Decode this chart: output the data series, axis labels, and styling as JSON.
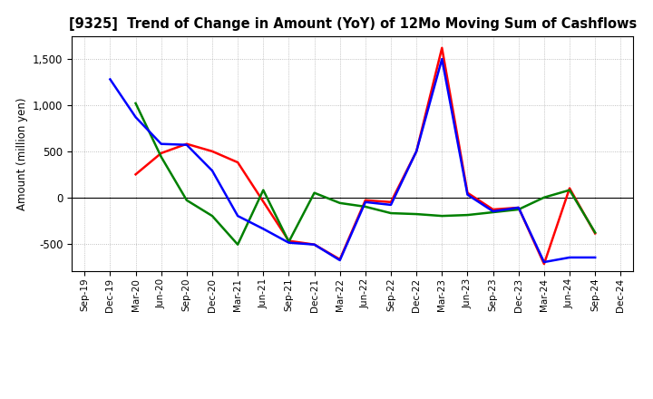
{
  "title": "[9325]  Trend of Change in Amount (YoY) of 12Mo Moving Sum of Cashflows",
  "ylabel": "Amount (million yen)",
  "x_labels": [
    "Sep-19",
    "Dec-19",
    "Mar-20",
    "Jun-20",
    "Sep-20",
    "Dec-20",
    "Mar-21",
    "Jun-21",
    "Sep-21",
    "Dec-21",
    "Mar-22",
    "Jun-22",
    "Sep-22",
    "Dec-22",
    "Mar-23",
    "Jun-23",
    "Sep-23",
    "Dec-23",
    "Mar-24",
    "Jun-24",
    "Sep-24",
    "Dec-24"
  ],
  "operating": [
    null,
    null,
    250,
    480,
    580,
    500,
    380,
    null,
    -470,
    -510,
    -670,
    -30,
    -50,
    500,
    1620,
    50,
    -130,
    -110,
    -720,
    100,
    -390,
    null
  ],
  "investing": [
    null,
    null,
    1020,
    440,
    -30,
    -200,
    -510,
    80,
    -480,
    50,
    -60,
    -100,
    -170,
    -180,
    -200,
    -190,
    -160,
    -130,
    0,
    80,
    -380,
    null
  ],
  "free": [
    null,
    1280,
    870,
    580,
    570,
    290,
    -200,
    -340,
    -490,
    -510,
    -680,
    -50,
    -80,
    500,
    1500,
    30,
    -150,
    -110,
    -700,
    -650,
    -650,
    null
  ],
  "operating_color": "#ff0000",
  "investing_color": "#008000",
  "free_color": "#0000ff",
  "ylim": [
    -800,
    1750
  ],
  "yticks": [
    -500,
    0,
    500,
    1000,
    1500
  ],
  "background_color": "#ffffff",
  "grid_color": "#b0b0b0"
}
